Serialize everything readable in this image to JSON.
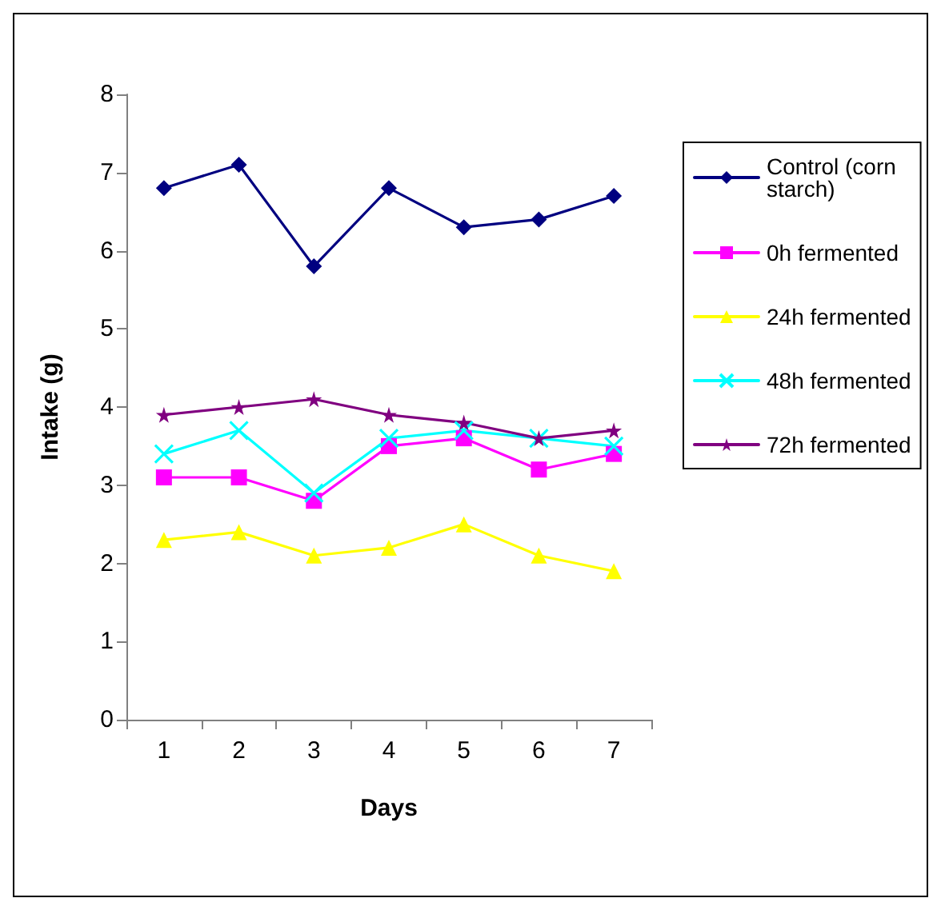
{
  "chart_data": {
    "type": "line",
    "xlabel": "Days",
    "ylabel": "Intake (g)",
    "categories": [
      "1",
      "2",
      "3",
      "4",
      "5",
      "6",
      "7"
    ],
    "series": [
      {
        "name": "Control (corn starch)",
        "color": "#000080",
        "marker": "diamond",
        "values": [
          6.8,
          7.1,
          5.8,
          6.8,
          6.3,
          6.4,
          6.7
        ]
      },
      {
        "name": "0h fermented",
        "color": "#ff00ff",
        "marker": "square",
        "values": [
          3.1,
          3.1,
          2.8,
          3.5,
          3.6,
          3.2,
          3.4
        ]
      },
      {
        "name": "24h fermented",
        "color": "#ffff00",
        "marker": "triangle",
        "values": [
          2.3,
          2.4,
          2.1,
          2.2,
          2.5,
          2.1,
          1.9
        ]
      },
      {
        "name": "48h fermented",
        "color": "#00ffff",
        "marker": "cross",
        "values": [
          3.4,
          3.7,
          2.9,
          3.6,
          3.7,
          3.6,
          3.5
        ]
      },
      {
        "name": "72h fermented",
        "color": "#800080",
        "marker": "star",
        "values": [
          3.9,
          4.0,
          4.1,
          3.9,
          3.8,
          3.6,
          3.7
        ]
      }
    ],
    "ylim": [
      0,
      8
    ],
    "yticks": [
      0,
      1,
      2,
      3,
      4,
      5,
      6,
      7,
      8
    ],
    "grid": false,
    "legend": "right",
    "line_style": "solid"
  }
}
